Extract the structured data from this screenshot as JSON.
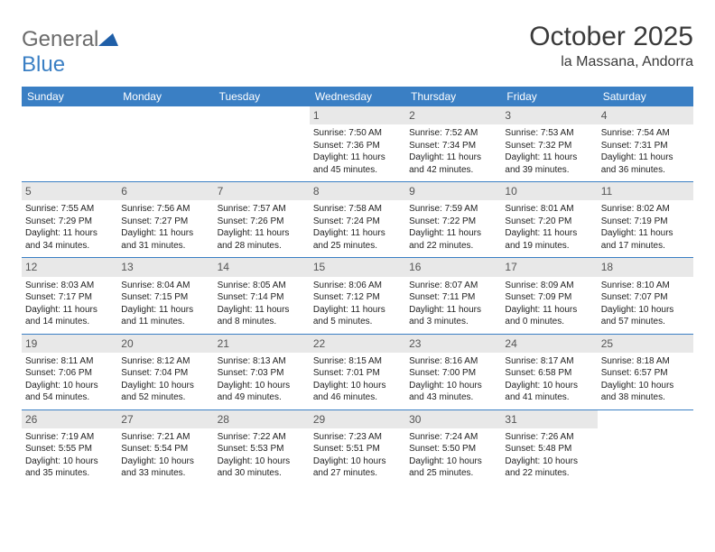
{
  "logo": {
    "text1": "General",
    "text2": "Blue",
    "text_color_1": "#6b6b6b",
    "text_color_2": "#3a7fc4",
    "icon_color": "#1f5fa8"
  },
  "title": "October 2025",
  "location": "la Massana, Andorra",
  "header_bg": "#3a7fc4",
  "header_fg": "#ffffff",
  "daynum_bg": "#e8e8e8",
  "divider_color": "#3a7fc4",
  "day_names": [
    "Sunday",
    "Monday",
    "Tuesday",
    "Wednesday",
    "Thursday",
    "Friday",
    "Saturday"
  ],
  "weeks": [
    [
      null,
      null,
      null,
      {
        "n": "1",
        "sr": "Sunrise: 7:50 AM",
        "ss": "Sunset: 7:36 PM",
        "d1": "Daylight: 11 hours",
        "d2": "and 45 minutes."
      },
      {
        "n": "2",
        "sr": "Sunrise: 7:52 AM",
        "ss": "Sunset: 7:34 PM",
        "d1": "Daylight: 11 hours",
        "d2": "and 42 minutes."
      },
      {
        "n": "3",
        "sr": "Sunrise: 7:53 AM",
        "ss": "Sunset: 7:32 PM",
        "d1": "Daylight: 11 hours",
        "d2": "and 39 minutes."
      },
      {
        "n": "4",
        "sr": "Sunrise: 7:54 AM",
        "ss": "Sunset: 7:31 PM",
        "d1": "Daylight: 11 hours",
        "d2": "and 36 minutes."
      }
    ],
    [
      {
        "n": "5",
        "sr": "Sunrise: 7:55 AM",
        "ss": "Sunset: 7:29 PM",
        "d1": "Daylight: 11 hours",
        "d2": "and 34 minutes."
      },
      {
        "n": "6",
        "sr": "Sunrise: 7:56 AM",
        "ss": "Sunset: 7:27 PM",
        "d1": "Daylight: 11 hours",
        "d2": "and 31 minutes."
      },
      {
        "n": "7",
        "sr": "Sunrise: 7:57 AM",
        "ss": "Sunset: 7:26 PM",
        "d1": "Daylight: 11 hours",
        "d2": "and 28 minutes."
      },
      {
        "n": "8",
        "sr": "Sunrise: 7:58 AM",
        "ss": "Sunset: 7:24 PM",
        "d1": "Daylight: 11 hours",
        "d2": "and 25 minutes."
      },
      {
        "n": "9",
        "sr": "Sunrise: 7:59 AM",
        "ss": "Sunset: 7:22 PM",
        "d1": "Daylight: 11 hours",
        "d2": "and 22 minutes."
      },
      {
        "n": "10",
        "sr": "Sunrise: 8:01 AM",
        "ss": "Sunset: 7:20 PM",
        "d1": "Daylight: 11 hours",
        "d2": "and 19 minutes."
      },
      {
        "n": "11",
        "sr": "Sunrise: 8:02 AM",
        "ss": "Sunset: 7:19 PM",
        "d1": "Daylight: 11 hours",
        "d2": "and 17 minutes."
      }
    ],
    [
      {
        "n": "12",
        "sr": "Sunrise: 8:03 AM",
        "ss": "Sunset: 7:17 PM",
        "d1": "Daylight: 11 hours",
        "d2": "and 14 minutes."
      },
      {
        "n": "13",
        "sr": "Sunrise: 8:04 AM",
        "ss": "Sunset: 7:15 PM",
        "d1": "Daylight: 11 hours",
        "d2": "and 11 minutes."
      },
      {
        "n": "14",
        "sr": "Sunrise: 8:05 AM",
        "ss": "Sunset: 7:14 PM",
        "d1": "Daylight: 11 hours",
        "d2": "and 8 minutes."
      },
      {
        "n": "15",
        "sr": "Sunrise: 8:06 AM",
        "ss": "Sunset: 7:12 PM",
        "d1": "Daylight: 11 hours",
        "d2": "and 5 minutes."
      },
      {
        "n": "16",
        "sr": "Sunrise: 8:07 AM",
        "ss": "Sunset: 7:11 PM",
        "d1": "Daylight: 11 hours",
        "d2": "and 3 minutes."
      },
      {
        "n": "17",
        "sr": "Sunrise: 8:09 AM",
        "ss": "Sunset: 7:09 PM",
        "d1": "Daylight: 11 hours",
        "d2": "and 0 minutes."
      },
      {
        "n": "18",
        "sr": "Sunrise: 8:10 AM",
        "ss": "Sunset: 7:07 PM",
        "d1": "Daylight: 10 hours",
        "d2": "and 57 minutes."
      }
    ],
    [
      {
        "n": "19",
        "sr": "Sunrise: 8:11 AM",
        "ss": "Sunset: 7:06 PM",
        "d1": "Daylight: 10 hours",
        "d2": "and 54 minutes."
      },
      {
        "n": "20",
        "sr": "Sunrise: 8:12 AM",
        "ss": "Sunset: 7:04 PM",
        "d1": "Daylight: 10 hours",
        "d2": "and 52 minutes."
      },
      {
        "n": "21",
        "sr": "Sunrise: 8:13 AM",
        "ss": "Sunset: 7:03 PM",
        "d1": "Daylight: 10 hours",
        "d2": "and 49 minutes."
      },
      {
        "n": "22",
        "sr": "Sunrise: 8:15 AM",
        "ss": "Sunset: 7:01 PM",
        "d1": "Daylight: 10 hours",
        "d2": "and 46 minutes."
      },
      {
        "n": "23",
        "sr": "Sunrise: 8:16 AM",
        "ss": "Sunset: 7:00 PM",
        "d1": "Daylight: 10 hours",
        "d2": "and 43 minutes."
      },
      {
        "n": "24",
        "sr": "Sunrise: 8:17 AM",
        "ss": "Sunset: 6:58 PM",
        "d1": "Daylight: 10 hours",
        "d2": "and 41 minutes."
      },
      {
        "n": "25",
        "sr": "Sunrise: 8:18 AM",
        "ss": "Sunset: 6:57 PM",
        "d1": "Daylight: 10 hours",
        "d2": "and 38 minutes."
      }
    ],
    [
      {
        "n": "26",
        "sr": "Sunrise: 7:19 AM",
        "ss": "Sunset: 5:55 PM",
        "d1": "Daylight: 10 hours",
        "d2": "and 35 minutes."
      },
      {
        "n": "27",
        "sr": "Sunrise: 7:21 AM",
        "ss": "Sunset: 5:54 PM",
        "d1": "Daylight: 10 hours",
        "d2": "and 33 minutes."
      },
      {
        "n": "28",
        "sr": "Sunrise: 7:22 AM",
        "ss": "Sunset: 5:53 PM",
        "d1": "Daylight: 10 hours",
        "d2": "and 30 minutes."
      },
      {
        "n": "29",
        "sr": "Sunrise: 7:23 AM",
        "ss": "Sunset: 5:51 PM",
        "d1": "Daylight: 10 hours",
        "d2": "and 27 minutes."
      },
      {
        "n": "30",
        "sr": "Sunrise: 7:24 AM",
        "ss": "Sunset: 5:50 PM",
        "d1": "Daylight: 10 hours",
        "d2": "and 25 minutes."
      },
      {
        "n": "31",
        "sr": "Sunrise: 7:26 AM",
        "ss": "Sunset: 5:48 PM",
        "d1": "Daylight: 10 hours",
        "d2": "and 22 minutes."
      },
      null
    ]
  ]
}
